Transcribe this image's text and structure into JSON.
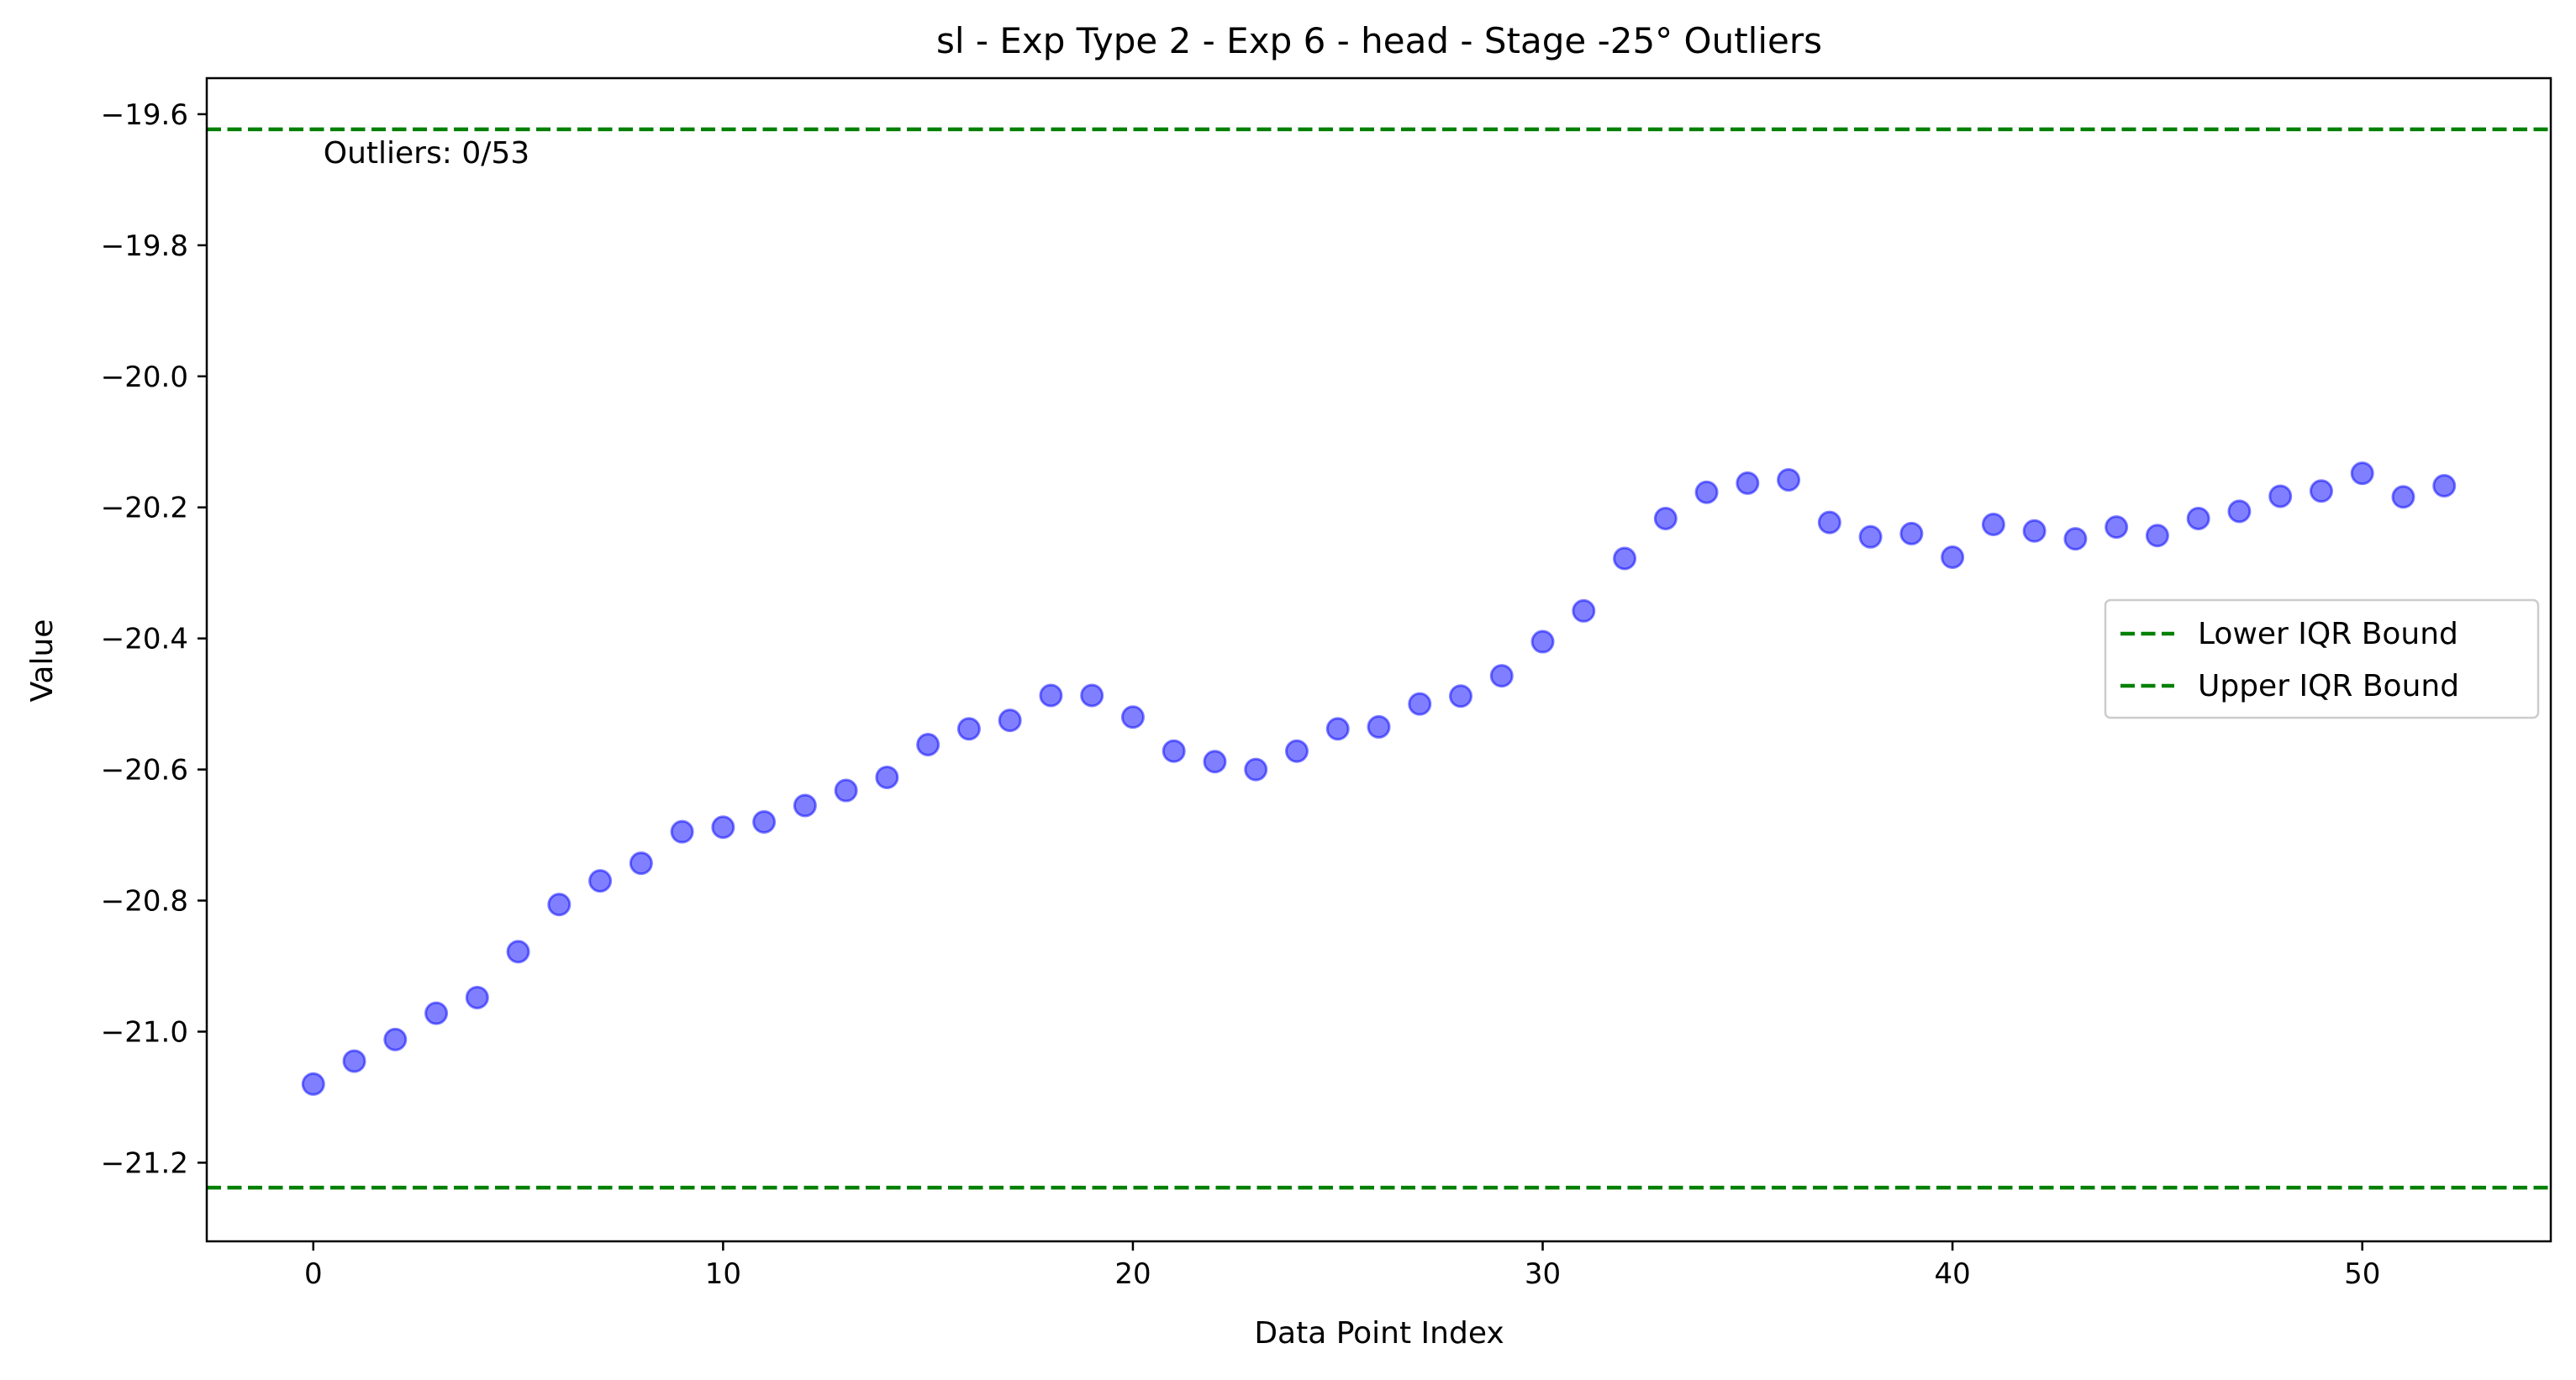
{
  "chart_data": {
    "type": "scatter",
    "title": "sl - Exp Type 2 - Exp 6 - head - Stage -25° Outliers",
    "xlabel": "Data Point Index",
    "ylabel": "Value",
    "xlim": [
      -2.6,
      54.6
    ],
    "ylim": [
      -21.32,
      -19.545
    ],
    "xticks": [
      0,
      10,
      20,
      30,
      40,
      50
    ],
    "yticks": [
      -21.2,
      -21.0,
      -20.8,
      -20.6,
      -20.4,
      -20.2,
      -20.0,
      -19.8,
      -19.6
    ],
    "ytick_labels": [
      "−21.2",
      "−21.0",
      "−20.8",
      "−20.6",
      "−20.4",
      "−20.2",
      "−20.0",
      "−19.8",
      "−19.6"
    ],
    "grid": false,
    "legend_placement": "center-right",
    "annotation": "Outliers: 0/53",
    "series": [
      {
        "x": [
          0,
          1,
          2,
          3,
          4,
          5,
          6,
          7,
          8,
          9,
          10,
          11,
          12,
          13,
          14,
          15,
          16,
          17,
          18,
          19,
          20,
          21,
          22,
          23,
          24,
          25,
          26,
          27,
          28,
          29,
          30,
          31,
          32,
          33,
          34,
          35,
          36,
          37,
          38,
          39,
          40,
          41,
          42,
          43,
          44,
          45,
          46,
          47,
          48,
          49,
          50,
          51,
          52
        ],
        "values": [
          -21.08,
          -21.045,
          -21.012,
          -20.972,
          -20.948,
          -20.878,
          -20.806,
          -20.77,
          -20.743,
          -20.695,
          -20.688,
          -20.68,
          -20.655,
          -20.632,
          -20.612,
          -20.562,
          -20.538,
          -20.525,
          -20.487,
          -20.487,
          -20.52,
          -20.572,
          -20.588,
          -20.6,
          -20.572,
          -20.538,
          -20.535,
          -20.5,
          -20.488,
          -20.457,
          -20.405,
          -20.358,
          -20.278,
          -20.217,
          -20.177,
          -20.163,
          -20.158,
          -20.223,
          -20.245,
          -20.24,
          -20.276,
          -20.226,
          -20.236,
          -20.248,
          -20.23,
          -20.243,
          -20.217,
          -20.206,
          -20.183,
          -20.175,
          -20.148,
          -20.184,
          -20.167
        ],
        "color": "#0000ff"
      }
    ],
    "reference_lines": [
      {
        "name": "Lower IQR Bound",
        "value": -21.238,
        "color": "#008000"
      },
      {
        "name": "Upper IQR Bound",
        "value": -19.623,
        "color": "#008000"
      }
    ]
  }
}
